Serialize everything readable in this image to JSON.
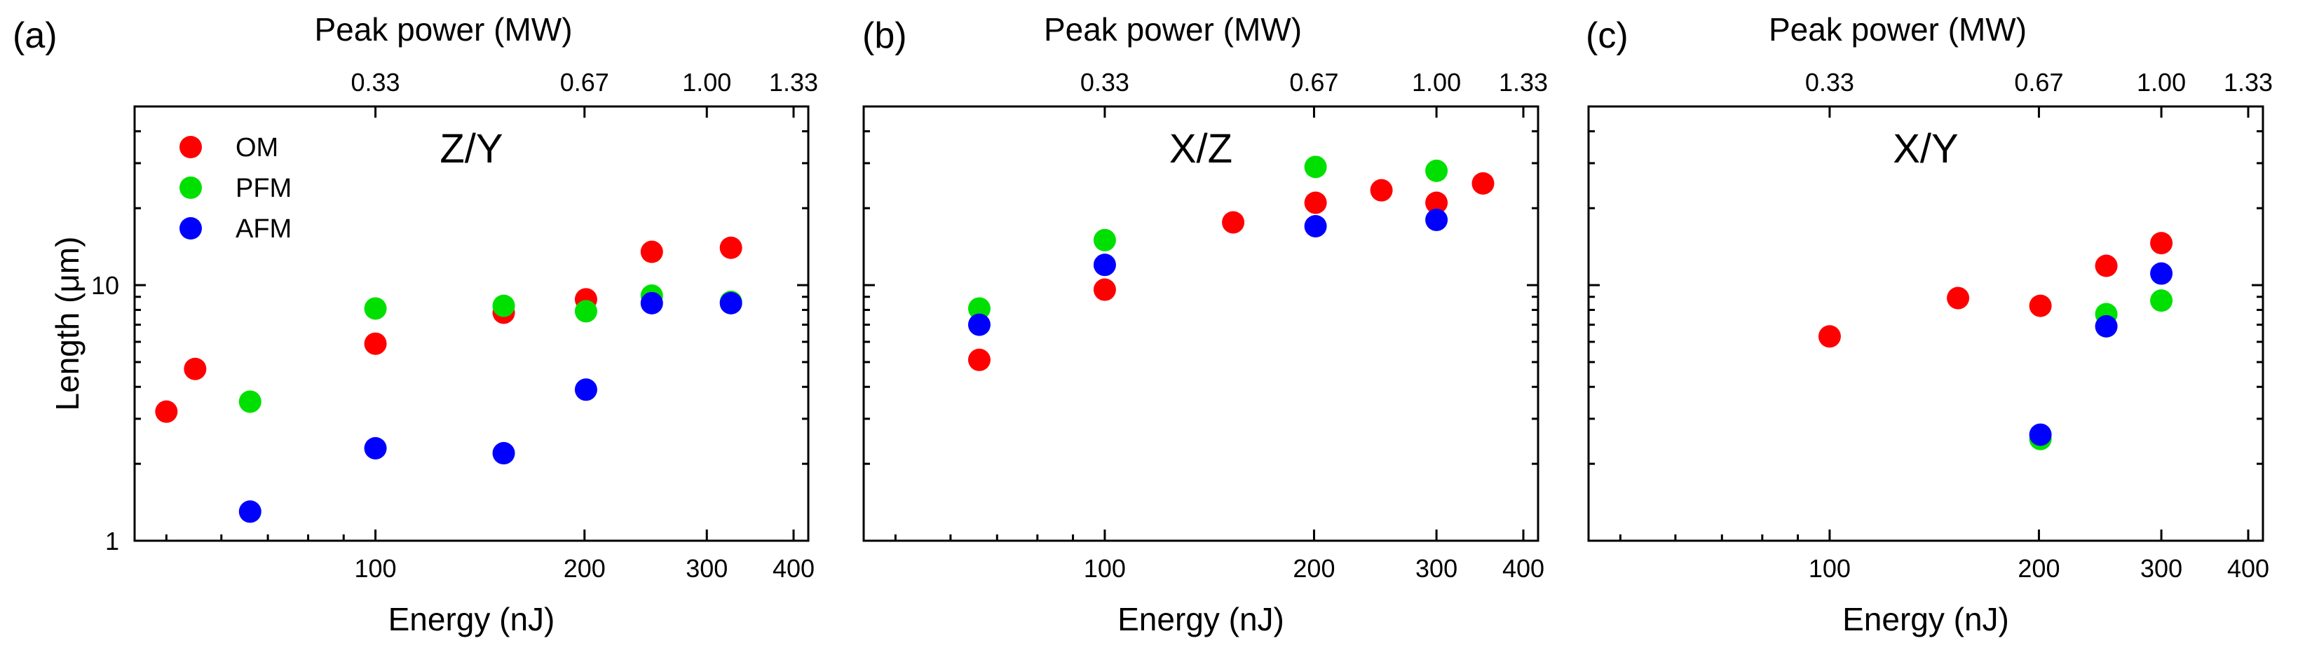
{
  "colors": {
    "OM": "#ff0000",
    "PFM": "#00e000",
    "AFM": "#0000ff"
  },
  "chart_data": [
    {
      "type": "scatter",
      "panel_label": "(a)",
      "title": "Z/Y",
      "xlabel": "Energy (nJ)",
      "ylabel": "Length (μm)",
      "top_xlabel": "Peak power (MW)",
      "x_scale": "log",
      "y_scale": "log",
      "xlim": [
        45,
        420
      ],
      "ylim": [
        1,
        50
      ],
      "x_ticks": [
        100,
        200,
        300,
        400
      ],
      "x_tick_labels": [
        "100",
        "200",
        "300",
        "400"
      ],
      "y_ticks": [
        1,
        10
      ],
      "y_tick_labels": [
        "1",
        "10"
      ],
      "top_ticks": [
        100,
        200,
        300,
        400
      ],
      "top_tick_labels": [
        "0.33",
        "0.67",
        "1.00",
        "1.33"
      ],
      "legend": [
        "OM",
        "PFM",
        "AFM"
      ],
      "series": [
        {
          "name": "OM",
          "x": [
            50,
            55,
            100,
            153,
            201,
            250,
            325
          ],
          "y": [
            3.2,
            4.7,
            5.9,
            7.8,
            8.8,
            13.5,
            14.0
          ]
        },
        {
          "name": "PFM",
          "x": [
            66,
            100,
            153,
            201,
            250,
            325
          ],
          "y": [
            3.5,
            8.1,
            8.3,
            7.9,
            9.1,
            8.6
          ]
        },
        {
          "name": "AFM",
          "x": [
            66,
            100,
            153,
            201,
            250,
            325
          ],
          "y": [
            1.3,
            2.3,
            2.2,
            3.9,
            8.5,
            8.5
          ]
        }
      ]
    },
    {
      "type": "scatter",
      "panel_label": "(b)",
      "title": "X/Z",
      "xlabel": "Energy (nJ)",
      "ylabel": "",
      "top_xlabel": "Peak power (MW)",
      "x_scale": "log",
      "y_scale": "log",
      "xlim": [
        45,
        420
      ],
      "ylim": [
        1,
        50
      ],
      "x_ticks": [
        100,
        200,
        300,
        400
      ],
      "x_tick_labels": [
        "100",
        "200",
        "300",
        "400"
      ],
      "y_ticks": [],
      "y_tick_labels": [],
      "top_ticks": [
        100,
        200,
        300,
        400
      ],
      "top_tick_labels": [
        "0.33",
        "0.67",
        "1.00",
        "1.33"
      ],
      "legend": [],
      "series": [
        {
          "name": "OM",
          "x": [
            66,
            100,
            153,
            201,
            250,
            300,
            350
          ],
          "y": [
            5.1,
            9.6,
            17.6,
            21.0,
            23.5,
            21.0,
            25.0
          ]
        },
        {
          "name": "PFM",
          "x": [
            66,
            100,
            201,
            300
          ],
          "y": [
            8.1,
            15.0,
            29.0,
            28.0
          ]
        },
        {
          "name": "AFM",
          "x": [
            66,
            100,
            201,
            300
          ],
          "y": [
            7.0,
            12.0,
            17.0,
            18.0
          ]
        }
      ]
    },
    {
      "type": "scatter",
      "panel_label": "(c)",
      "title": "X/Y",
      "xlabel": "Energy (nJ)",
      "ylabel": "",
      "top_xlabel": "Peak power (MW)",
      "x_scale": "log",
      "y_scale": "log",
      "xlim": [
        45,
        420
      ],
      "ylim": [
        1,
        50
      ],
      "x_ticks": [
        100,
        200,
        300,
        400
      ],
      "x_tick_labels": [
        "100",
        "200",
        "300",
        "400"
      ],
      "y_ticks": [],
      "y_tick_labels": [],
      "top_ticks": [
        100,
        200,
        300,
        400
      ],
      "top_tick_labels": [
        "0.33",
        "0.67",
        "1.00",
        "1.33"
      ],
      "legend": [],
      "series": [
        {
          "name": "OM",
          "x": [
            100,
            153,
            201,
            250,
            300
          ],
          "y": [
            6.3,
            8.9,
            8.3,
            11.9,
            14.6
          ]
        },
        {
          "name": "PFM",
          "x": [
            201,
            250,
            300
          ],
          "y": [
            2.5,
            7.7,
            8.7
          ]
        },
        {
          "name": "AFM",
          "x": [
            201,
            250,
            300
          ],
          "y": [
            2.6,
            6.9,
            11.1
          ]
        }
      ]
    }
  ]
}
